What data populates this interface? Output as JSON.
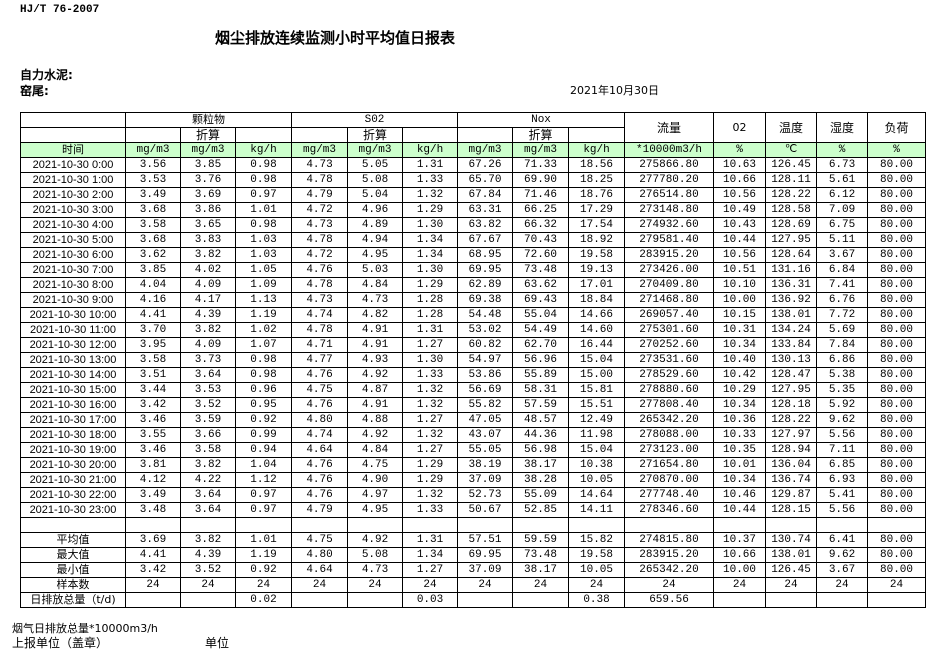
{
  "standard": "HJ/T  76-2007",
  "title": "烟尘排放连续监测小时平均值日报表",
  "company_label": "自力水泥:",
  "kiln_label": "窑尾:",
  "date": "2021年10月30日",
  "header": {
    "groups": {
      "particulate": "颗粒物",
      "so2": "S02",
      "nox": "Nox"
    },
    "converted": "折算",
    "flow": "流量",
    "o2": "02",
    "temperature": "温度",
    "humidity": "湿度",
    "load": "负荷",
    "units": [
      "时间",
      "mg/m3",
      "mg/m3",
      "kg/h",
      "mg/m3",
      "mg/m3",
      "kg/h",
      "mg/m3",
      "mg/m3",
      "kg/h",
      "*10000m3/h",
      "%",
      "℃",
      "%",
      "%"
    ]
  },
  "rows": [
    [
      "2021-10-30 0:00",
      "3.56",
      "3.85",
      "0.98",
      "4.73",
      "5.05",
      "1.31",
      "67.26",
      "71.33",
      "18.56",
      "275866.80",
      "10.63",
      "126.45",
      "6.73",
      "80.00"
    ],
    [
      "2021-10-30 1:00",
      "3.53",
      "3.76",
      "0.98",
      "4.78",
      "5.08",
      "1.33",
      "65.70",
      "69.90",
      "18.25",
      "277780.20",
      "10.66",
      "128.11",
      "5.61",
      "80.00"
    ],
    [
      "2021-10-30 2:00",
      "3.49",
      "3.69",
      "0.97",
      "4.79",
      "5.04",
      "1.32",
      "67.84",
      "71.46",
      "18.76",
      "276514.80",
      "10.56",
      "128.22",
      "6.12",
      "80.00"
    ],
    [
      "2021-10-30 3:00",
      "3.68",
      "3.86",
      "1.01",
      "4.72",
      "4.96",
      "1.29",
      "63.31",
      "66.25",
      "17.29",
      "273148.80",
      "10.49",
      "128.58",
      "7.09",
      "80.00"
    ],
    [
      "2021-10-30 4:00",
      "3.58",
      "3.65",
      "0.98",
      "4.73",
      "4.89",
      "1.30",
      "63.82",
      "66.32",
      "17.54",
      "274932.60",
      "10.43",
      "128.69",
      "6.75",
      "80.00"
    ],
    [
      "2021-10-30 5:00",
      "3.68",
      "3.83",
      "1.03",
      "4.78",
      "4.94",
      "1.34",
      "67.67",
      "70.43",
      "18.92",
      "279581.40",
      "10.44",
      "127.95",
      "5.11",
      "80.00"
    ],
    [
      "2021-10-30 6:00",
      "3.62",
      "3.82",
      "1.03",
      "4.72",
      "4.95",
      "1.34",
      "68.95",
      "72.60",
      "19.58",
      "283915.20",
      "10.56",
      "128.64",
      "3.67",
      "80.00"
    ],
    [
      "2021-10-30 7:00",
      "3.85",
      "4.02",
      "1.05",
      "4.76",
      "5.03",
      "1.30",
      "69.95",
      "73.48",
      "19.13",
      "273426.00",
      "10.51",
      "131.16",
      "6.84",
      "80.00"
    ],
    [
      "2021-10-30 8:00",
      "4.04",
      "4.09",
      "1.09",
      "4.78",
      "4.84",
      "1.29",
      "62.89",
      "63.62",
      "17.01",
      "270409.80",
      "10.10",
      "136.31",
      "7.41",
      "80.00"
    ],
    [
      "2021-10-30 9:00",
      "4.16",
      "4.17",
      "1.13",
      "4.73",
      "4.73",
      "1.28",
      "69.38",
      "69.43",
      "18.84",
      "271468.80",
      "10.00",
      "136.92",
      "6.76",
      "80.00"
    ],
    [
      "2021-10-30 10:00",
      "4.41",
      "4.39",
      "1.19",
      "4.74",
      "4.82",
      "1.28",
      "54.48",
      "55.04",
      "14.66",
      "269057.40",
      "10.15",
      "138.01",
      "7.72",
      "80.00"
    ],
    [
      "2021-10-30 11:00",
      "3.70",
      "3.82",
      "1.02",
      "4.78",
      "4.91",
      "1.31",
      "53.02",
      "54.49",
      "14.60",
      "275301.60",
      "10.31",
      "134.24",
      "5.69",
      "80.00"
    ],
    [
      "2021-10-30 12:00",
      "3.95",
      "4.09",
      "1.07",
      "4.71",
      "4.91",
      "1.27",
      "60.82",
      "62.70",
      "16.44",
      "270252.60",
      "10.34",
      "133.84",
      "7.84",
      "80.00"
    ],
    [
      "2021-10-30 13:00",
      "3.58",
      "3.73",
      "0.98",
      "4.77",
      "4.93",
      "1.30",
      "54.97",
      "56.96",
      "15.04",
      "273531.60",
      "10.40",
      "130.13",
      "6.86",
      "80.00"
    ],
    [
      "2021-10-30 14:00",
      "3.51",
      "3.64",
      "0.98",
      "4.76",
      "4.92",
      "1.33",
      "53.86",
      "55.89",
      "15.00",
      "278529.60",
      "10.42",
      "128.47",
      "5.38",
      "80.00"
    ],
    [
      "2021-10-30 15:00",
      "3.44",
      "3.53",
      "0.96",
      "4.75",
      "4.87",
      "1.32",
      "56.69",
      "58.31",
      "15.81",
      "278880.60",
      "10.29",
      "127.95",
      "5.35",
      "80.00"
    ],
    [
      "2021-10-30 16:00",
      "3.42",
      "3.52",
      "0.95",
      "4.76",
      "4.91",
      "1.32",
      "55.82",
      "57.59",
      "15.51",
      "277808.40",
      "10.34",
      "128.18",
      "5.92",
      "80.00"
    ],
    [
      "2021-10-30 17:00",
      "3.46",
      "3.59",
      "0.92",
      "4.80",
      "4.88",
      "1.27",
      "47.05",
      "48.57",
      "12.49",
      "265342.20",
      "10.36",
      "128.22",
      "9.62",
      "80.00"
    ],
    [
      "2021-10-30 18:00",
      "3.55",
      "3.66",
      "0.99",
      "4.74",
      "4.92",
      "1.32",
      "43.07",
      "44.36",
      "11.98",
      "278088.00",
      "10.33",
      "127.97",
      "5.56",
      "80.00"
    ],
    [
      "2021-10-30 19:00",
      "3.46",
      "3.58",
      "0.94",
      "4.64",
      "4.84",
      "1.27",
      "55.05",
      "56.98",
      "15.04",
      "273123.00",
      "10.35",
      "128.94",
      "7.11",
      "80.00"
    ],
    [
      "2021-10-30 20:00",
      "3.81",
      "3.82",
      "1.04",
      "4.76",
      "4.75",
      "1.29",
      "38.19",
      "38.17",
      "10.38",
      "271654.80",
      "10.01",
      "136.04",
      "6.85",
      "80.00"
    ],
    [
      "2021-10-30 21:00",
      "4.12",
      "4.22",
      "1.12",
      "4.76",
      "4.90",
      "1.29",
      "37.09",
      "38.28",
      "10.05",
      "270870.00",
      "10.34",
      "136.74",
      "6.93",
      "80.00"
    ],
    [
      "2021-10-30 22:00",
      "3.49",
      "3.64",
      "0.97",
      "4.76",
      "4.97",
      "1.32",
      "52.73",
      "55.09",
      "14.64",
      "277748.40",
      "10.46",
      "129.87",
      "5.41",
      "80.00"
    ],
    [
      "2021-10-30 23:00",
      "3.48",
      "3.64",
      "0.97",
      "4.79",
      "4.95",
      "1.33",
      "50.67",
      "52.85",
      "14.11",
      "278346.60",
      "10.44",
      "128.15",
      "5.56",
      "80.00"
    ]
  ],
  "summary": [
    [
      "平均值",
      "3.69",
      "3.82",
      "1.01",
      "4.75",
      "4.92",
      "1.31",
      "57.51",
      "59.59",
      "15.82",
      "274815.80",
      "10.37",
      "130.74",
      "6.41",
      "80.00"
    ],
    [
      "最大值",
      "4.41",
      "4.39",
      "1.19",
      "4.80",
      "5.08",
      "1.34",
      "69.95",
      "73.48",
      "19.58",
      "283915.20",
      "10.66",
      "138.01",
      "9.62",
      "80.00"
    ],
    [
      "最小值",
      "3.42",
      "3.52",
      "0.92",
      "4.64",
      "4.73",
      "1.27",
      "37.09",
      "38.17",
      "10.05",
      "265342.20",
      "10.00",
      "126.45",
      "3.67",
      "80.00"
    ],
    [
      "样本数",
      "24",
      "24",
      "24",
      "24",
      "24",
      "24",
      "24",
      "24",
      "24",
      "24",
      "24",
      "24",
      "24",
      "24"
    ],
    [
      "日排放总量（t/d)",
      "",
      "",
      "0.02",
      "",
      "",
      "0.03",
      "",
      "",
      "0.38",
      "659.56",
      "",
      "",
      "",
      ""
    ]
  ],
  "footer": {
    "flue_gas_total": "烟气日排放总量*10000m3/h",
    "reporting_unit": "上报单位（盖章）",
    "unit": "单位"
  },
  "colors": {
    "unit_row_bg": "#ccffcc"
  }
}
